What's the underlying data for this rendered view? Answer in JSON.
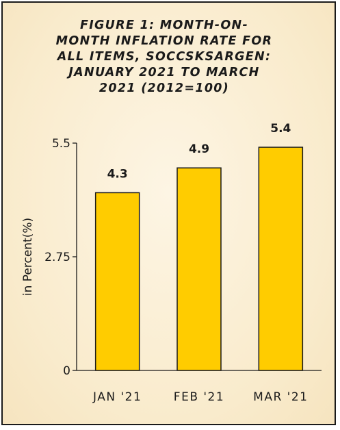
{
  "chart_data": {
    "type": "bar",
    "title_lines": [
      "FIGURE 1: MONTH-ON-",
      "MONTH INFLATION RATE FOR",
      "ALL ITEMS, SOCCSKSARGEN:",
      "JANUARY 2021 TO MARCH",
      "2021 (2012=100)"
    ],
    "categories": [
      "JAN '21",
      "FEB '21",
      "MAR '21"
    ],
    "values": [
      4.3,
      4.9,
      5.4
    ],
    "data_labels": [
      "4.3",
      "4.9",
      "5.4"
    ],
    "ylabel": "in Percent(%)",
    "xlabel": "",
    "ylim": [
      0,
      5.5
    ],
    "yticks": [
      0,
      2.75,
      5.5
    ],
    "ytick_labels": [
      "0",
      "2.75",
      "5.5"
    ],
    "grid": false,
    "colors": {
      "bar_fill": "#ffcc00",
      "bar_stroke": "#1a1a1a",
      "background": "#fbefd6"
    }
  }
}
